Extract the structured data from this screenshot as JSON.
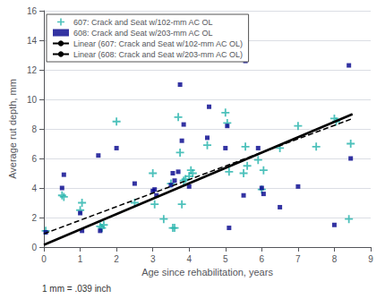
{
  "chart_data": {
    "type": "scatter",
    "xlabel": "Age since rehabilitation, years",
    "ylabel": "Average rut depth, mm",
    "annotations": [
      "1 mm = .039 inch"
    ],
    "xlim": [
      0,
      9
    ],
    "ylim": [
      0,
      16
    ],
    "xticks": [
      0,
      1,
      2,
      3,
      4,
      5,
      6,
      7,
      8,
      9
    ],
    "yticks": [
      0,
      2,
      4,
      6,
      8,
      10,
      12,
      14,
      16
    ],
    "grid": "y",
    "legend": "upper left",
    "series": [
      {
        "name": "607: Crack and Seat w/102-mm AC OL",
        "type": "scatter",
        "color": "#20B2AA",
        "marker": "plus",
        "x": [
          0.05,
          0.5,
          0.55,
          1.0,
          1.05,
          1.55,
          1.6,
          1.65,
          2.0,
          2.5,
          3.0,
          3.05,
          3.3,
          3.5,
          3.55,
          3.6,
          3.7,
          3.75,
          3.8,
          3.85,
          3.9,
          4.0,
          4.05,
          4.1,
          4.5,
          5.0,
          5.05,
          5.1,
          5.5,
          5.55,
          5.6,
          5.9,
          6.0,
          6.05,
          6.5,
          7.0,
          7.5,
          8.0,
          8.05,
          8.4,
          8.45
        ],
        "values": [
          1.1,
          3.5,
          3.4,
          2.5,
          3.0,
          1.4,
          1.3,
          1.5,
          8.5,
          3.0,
          5.0,
          2.9,
          1.9,
          4.3,
          1.3,
          1.3,
          8.8,
          6.4,
          2.9,
          4.5,
          4.6,
          4.8,
          5.2,
          5.0,
          6.9,
          9.1,
          8.4,
          5.1,
          5.0,
          6.8,
          5.5,
          5.9,
          3.9,
          5.2,
          6.7,
          8.2,
          6.8,
          8.7,
          8.5,
          1.9,
          7.0
        ]
      },
      {
        "name": "608: Crack and Seat w/203-mm AC OL",
        "type": "scatter",
        "color": "#00008B",
        "marker": "square",
        "x": [
          0.05,
          0.5,
          0.55,
          1.0,
          1.05,
          1.5,
          1.55,
          2.0,
          2.5,
          3.0,
          3.05,
          3.1,
          3.5,
          3.55,
          3.6,
          3.7,
          3.75,
          3.8,
          3.85,
          4.0,
          4.5,
          4.55,
          5.0,
          5.05,
          5.1,
          5.5,
          5.55,
          5.9,
          6.0,
          6.05,
          6.5,
          7.0,
          8.0,
          8.4,
          8.45
        ],
        "values": [
          1.0,
          4.0,
          4.9,
          2.3,
          1.1,
          6.2,
          1.1,
          6.7,
          4.3,
          3.8,
          3.9,
          3.5,
          4.2,
          5.0,
          4.5,
          5.1,
          11.0,
          7.2,
          8.3,
          4.1,
          7.4,
          9.5,
          6.7,
          8.2,
          1.3,
          3.5,
          12.6,
          6.7,
          4.0,
          3.6,
          2.7,
          4.1,
          1.5,
          12.3,
          6.0
        ]
      },
      {
        "name": "Linear (607: Crack and Seat w/102-mm AC OL)",
        "type": "line",
        "color": "#000000",
        "line_style": "solid",
        "x": [
          0.0,
          8.5
        ],
        "values": [
          0.15,
          9.0
        ]
      },
      {
        "name": "Linear (608: Crack and Seat w/203-mm AC OL)",
        "type": "line",
        "color": "#000000",
        "line_style": "dashed",
        "x": [
          0.0,
          8.5
        ],
        "values": [
          0.9,
          8.7
        ]
      }
    ]
  }
}
